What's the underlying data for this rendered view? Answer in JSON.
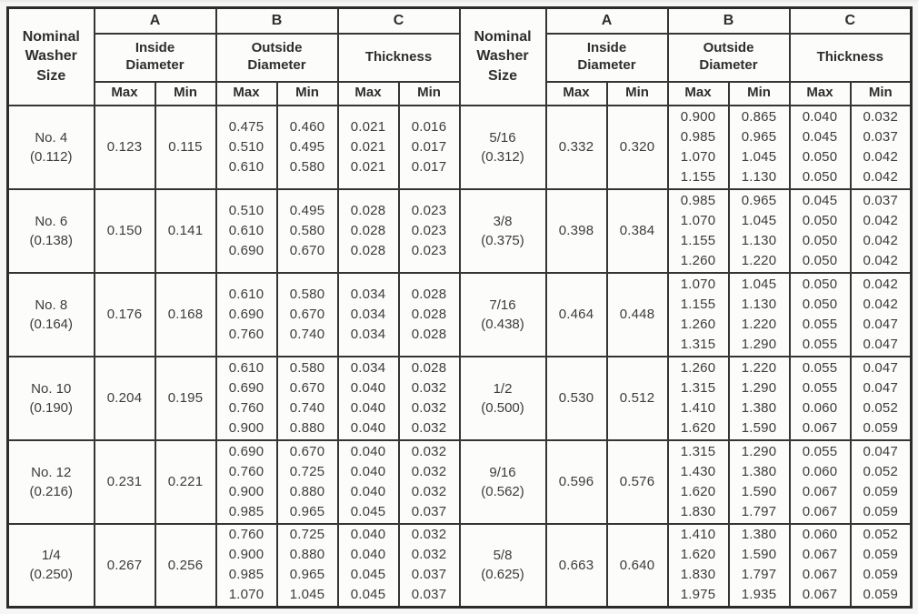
{
  "table": {
    "nominal_header": "Nominal\nWasher\nSize",
    "groups": [
      {
        "letter": "A",
        "title": "Inside\nDiameter"
      },
      {
        "letter": "B",
        "title": "Outside\nDiameter"
      },
      {
        "letter": "C",
        "title": "Thickness"
      }
    ],
    "max_label": "Max",
    "min_label": "Min",
    "left_rows": [
      {
        "size": "No. 4",
        "basic": "(0.112)",
        "id_max": "0.123",
        "id_min": "0.115",
        "od_max": [
          "0.475",
          "0.510",
          "0.610"
        ],
        "od_min": [
          "0.460",
          "0.495",
          "0.580"
        ],
        "th_max": [
          "0.021",
          "0.021",
          "0.021"
        ],
        "th_min": [
          "0.016",
          "0.017",
          "0.017"
        ]
      },
      {
        "size": "No. 6",
        "basic": "(0.138)",
        "id_max": "0.150",
        "id_min": "0.141",
        "od_max": [
          "0.510",
          "0.610",
          "0.690"
        ],
        "od_min": [
          "0.495",
          "0.580",
          "0.670"
        ],
        "th_max": [
          "0.028",
          "0.028",
          "0.028"
        ],
        "th_min": [
          "0.023",
          "0.023",
          "0.023"
        ]
      },
      {
        "size": "No. 8",
        "basic": "(0.164)",
        "id_max": "0.176",
        "id_min": "0.168",
        "od_max": [
          "0.610",
          "0.690",
          "0.760"
        ],
        "od_min": [
          "0.580",
          "0.670",
          "0.740"
        ],
        "th_max": [
          "0.034",
          "0.034",
          "0.034"
        ],
        "th_min": [
          "0.028",
          "0.028",
          "0.028"
        ]
      },
      {
        "size": "No. 10",
        "basic": "(0.190)",
        "id_max": "0.204",
        "id_min": "0.195",
        "od_max": [
          "0.610",
          "0.690",
          "0.760",
          "0.900"
        ],
        "od_min": [
          "0.580",
          "0.670",
          "0.740",
          "0.880"
        ],
        "th_max": [
          "0.034",
          "0.040",
          "0.040",
          "0.040"
        ],
        "th_min": [
          "0.028",
          "0.032",
          "0.032",
          "0.032"
        ]
      },
      {
        "size": "No. 12",
        "basic": "(0.216)",
        "id_max": "0.231",
        "id_min": "0.221",
        "od_max": [
          "0.690",
          "0.760",
          "0.900",
          "0.985"
        ],
        "od_min": [
          "0.670",
          "0.725",
          "0.880",
          "0.965"
        ],
        "th_max": [
          "0.040",
          "0.040",
          "0.040",
          "0.045"
        ],
        "th_min": [
          "0.032",
          "0.032",
          "0.032",
          "0.037"
        ]
      },
      {
        "size": "1/4",
        "basic": "(0.250)",
        "id_max": "0.267",
        "id_min": "0.256",
        "od_max": [
          "0.760",
          "0.900",
          "0.985",
          "1.070"
        ],
        "od_min": [
          "0.725",
          "0.880",
          "0.965",
          "1.045"
        ],
        "th_max": [
          "0.040",
          "0.040",
          "0.045",
          "0.045"
        ],
        "th_min": [
          "0.032",
          "0.032",
          "0.037",
          "0.037"
        ]
      }
    ],
    "right_rows": [
      {
        "size": "5/16",
        "basic": "(0.312)",
        "id_max": "0.332",
        "id_min": "0.320",
        "od_max": [
          "0.900",
          "0.985",
          "1.070",
          "1.155"
        ],
        "od_min": [
          "0.865",
          "0.965",
          "1.045",
          "1.130"
        ],
        "th_max": [
          "0.040",
          "0.045",
          "0.050",
          "0.050"
        ],
        "th_min": [
          "0.032",
          "0.037",
          "0.042",
          "0.042"
        ]
      },
      {
        "size": "3/8",
        "basic": "(0.375)",
        "id_max": "0.398",
        "id_min": "0.384",
        "od_max": [
          "0.985",
          "1.070",
          "1.155",
          "1.260"
        ],
        "od_min": [
          "0.965",
          "1.045",
          "1.130",
          "1.220"
        ],
        "th_max": [
          "0.045",
          "0.050",
          "0.050",
          "0.050"
        ],
        "th_min": [
          "0.037",
          "0.042",
          "0.042",
          "0.042"
        ]
      },
      {
        "size": "7/16",
        "basic": "(0.438)",
        "id_max": "0.464",
        "id_min": "0.448",
        "od_max": [
          "1.070",
          "1.155",
          "1.260",
          "1.315"
        ],
        "od_min": [
          "1.045",
          "1.130",
          "1.220",
          "1.290"
        ],
        "th_max": [
          "0.050",
          "0.050",
          "0.055",
          "0.055"
        ],
        "th_min": [
          "0.042",
          "0.042",
          "0.047",
          "0.047"
        ]
      },
      {
        "size": "1/2",
        "basic": "(0.500)",
        "id_max": "0.530",
        "id_min": "0.512",
        "od_max": [
          "1.260",
          "1.315",
          "1.410",
          "1.620"
        ],
        "od_min": [
          "1.220",
          "1.290",
          "1.380",
          "1.590"
        ],
        "th_max": [
          "0.055",
          "0.055",
          "0.060",
          "0.067"
        ],
        "th_min": [
          "0.047",
          "0.047",
          "0.052",
          "0.059"
        ]
      },
      {
        "size": "9/16",
        "basic": "(0.562)",
        "id_max": "0.596",
        "id_min": "0.576",
        "od_max": [
          "1.315",
          "1.430",
          "1.620",
          "1.830"
        ],
        "od_min": [
          "1.290",
          "1.380",
          "1.590",
          "1.797"
        ],
        "th_max": [
          "0.055",
          "0.060",
          "0.067",
          "0.067"
        ],
        "th_min": [
          "0.047",
          "0.052",
          "0.059",
          "0.059"
        ]
      },
      {
        "size": "5/8",
        "basic": "(0.625)",
        "id_max": "0.663",
        "id_min": "0.640",
        "od_max": [
          "1.410",
          "1.620",
          "1.830",
          "1.975"
        ],
        "od_min": [
          "1.380",
          "1.590",
          "1.797",
          "1.935"
        ],
        "th_max": [
          "0.060",
          "0.067",
          "0.067",
          "0.067"
        ],
        "th_min": [
          "0.052",
          "0.059",
          "0.059",
          "0.059"
        ]
      }
    ]
  }
}
